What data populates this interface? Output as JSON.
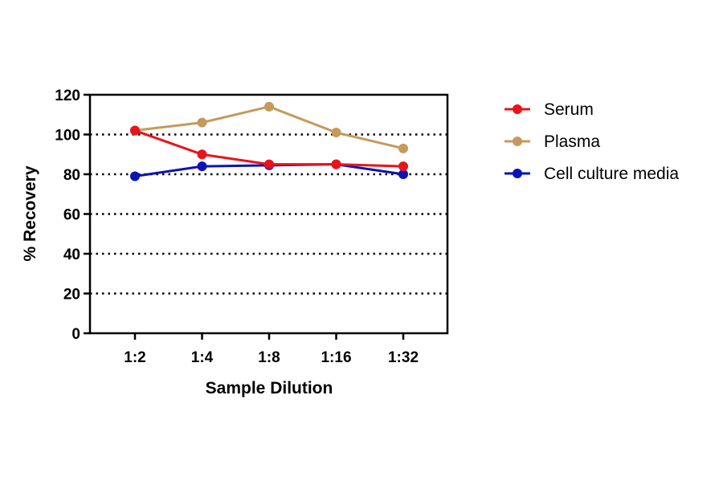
{
  "chart_data": {
    "type": "line",
    "xlabel": "Sample Dilution",
    "ylabel": "% Recovery",
    "categories": [
      "1:2",
      "1:4",
      "1:8",
      "1:16",
      "1:32"
    ],
    "ylim": [
      0,
      120
    ],
    "yticks": [
      0,
      20,
      40,
      60,
      80,
      100,
      120
    ],
    "grid": "horizontal dotted",
    "legend_position": "right",
    "series": [
      {
        "name": "Serum",
        "color": "#e8141a",
        "values": [
          102,
          90,
          85,
          85,
          84
        ]
      },
      {
        "name": "Plasma",
        "color": "#c49a5c",
        "values": [
          102,
          106,
          114,
          101,
          93
        ]
      },
      {
        "name": "Cell culture media",
        "color": "#0a14b4",
        "values": [
          79,
          84,
          84.5,
          85,
          80
        ]
      }
    ]
  }
}
